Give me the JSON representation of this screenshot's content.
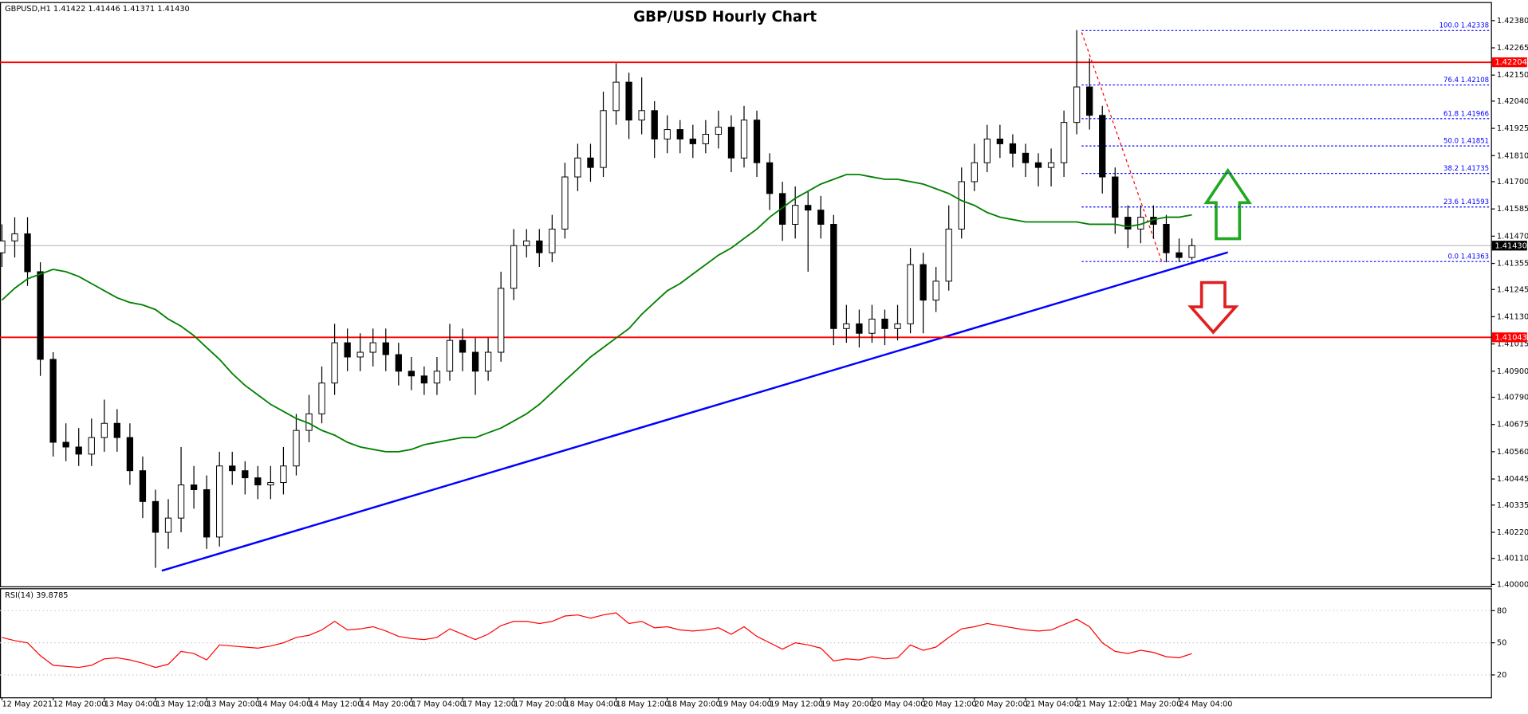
{
  "chart_data": {
    "type": "candlestick",
    "title": "GBP/USD Hourly Chart",
    "header": "GBPUSD,H1  1.41422 1.41446 1.41371 1.41430",
    "categories": [
      "12 May 2021",
      null,
      null,
      null,
      "12 May 20:00",
      null,
      null,
      null,
      "13 May 04:00",
      null,
      null,
      null,
      "13 May 12:00",
      null,
      null,
      null,
      "13 May 20:00",
      null,
      null,
      null,
      "14 May 04:00",
      null,
      null,
      null,
      "14 May 12:00",
      null,
      null,
      null,
      "14 May 20:00",
      null,
      null,
      null,
      "17 May 04:00",
      null,
      null,
      null,
      "17 May 12:00",
      null,
      null,
      null,
      "17 May 20:00",
      null,
      null,
      null,
      "18 May 04:00",
      null,
      null,
      null,
      "18 May 12:00",
      null,
      null,
      null,
      "18 May 20:00",
      null,
      null,
      null,
      "19 May 04:00",
      null,
      null,
      null,
      "19 May 12:00",
      null,
      null,
      null,
      "19 May 20:00",
      null,
      null,
      null,
      "20 May 04:00",
      null,
      null,
      null,
      "20 May 12:00",
      null,
      null,
      null,
      "20 May 20:00",
      null,
      null,
      null,
      "21 May 04:00",
      null,
      null,
      null,
      "21 May 12:00",
      null,
      null,
      null,
      "21 May 20:00",
      null,
      null,
      null,
      "24 May 04:00",
      null
    ],
    "open": [
      1.414,
      1.4145,
      1.4148,
      1.4132,
      1.4095,
      1.406,
      1.4058,
      1.4055,
      1.4062,
      1.4068,
      1.4062,
      1.4048,
      1.4035,
      1.4022,
      1.4028,
      1.4042,
      1.404,
      1.402,
      1.405,
      1.4048,
      1.4045,
      1.4042,
      1.4043,
      1.405,
      1.4065,
      1.4072,
      1.4085,
      1.4102,
      1.4096,
      1.4098,
      1.4102,
      1.4097,
      1.409,
      1.4088,
      1.4085,
      1.409,
      1.4103,
      1.4098,
      1.409,
      1.4098,
      1.4125,
      1.4143,
      1.4145,
      1.414,
      1.415,
      1.4172,
      1.418,
      1.4176,
      1.42,
      1.4212,
      1.4196,
      1.42,
      1.4188,
      1.4192,
      1.4188,
      1.4186,
      1.419,
      1.4193,
      1.418,
      1.4196,
      1.4178,
      1.4165,
      1.4152,
      1.416,
      1.4158,
      1.4152,
      1.4108,
      1.411,
      1.4106,
      1.4112,
      1.4108,
      1.411,
      1.4135,
      1.412,
      1.4128,
      1.415,
      1.417,
      1.4178,
      1.4188,
      1.4186,
      1.4182,
      1.4178,
      1.4176,
      1.4178,
      1.4195,
      1.421,
      1.4198,
      1.4172,
      1.4155,
      1.415,
      1.4155,
      1.4152,
      1.414,
      1.4138
    ],
    "high": [
      1.4152,
      1.4155,
      1.4155,
      1.4136,
      1.4098,
      1.4068,
      1.4066,
      1.407,
      1.4078,
      1.4074,
      1.4068,
      1.4054,
      1.404,
      1.4036,
      1.4058,
      1.405,
      1.4046,
      1.4056,
      1.4056,
      1.4052,
      1.405,
      1.405,
      1.4058,
      1.4072,
      1.408,
      1.4092,
      1.411,
      1.4108,
      1.4106,
      1.4108,
      1.4108,
      1.4102,
      1.4096,
      1.4092,
      1.4096,
      1.411,
      1.4108,
      1.4104,
      1.4104,
      1.4132,
      1.415,
      1.415,
      1.415,
      1.4156,
      1.4178,
      1.4186,
      1.4186,
      1.4208,
      1.422,
      1.4216,
      1.4214,
      1.4204,
      1.4198,
      1.4196,
      1.4194,
      1.4196,
      1.42,
      1.4198,
      1.4202,
      1.42,
      1.4182,
      1.417,
      1.4168,
      1.4166,
      1.4164,
      1.4156,
      1.4118,
      1.4116,
      1.4118,
      1.4116,
      1.4118,
      1.4142,
      1.414,
      1.4134,
      1.416,
      1.4176,
      1.4186,
      1.4194,
      1.4194,
      1.419,
      1.4186,
      1.4182,
      1.4184,
      1.42,
      1.4234,
      1.4222,
      1.4202,
      1.4176,
      1.416,
      1.416,
      1.416,
      1.4156,
      1.4146,
      1.4146
    ],
    "low": [
      1.4134,
      1.4138,
      1.4126,
      1.4088,
      1.4054,
      1.4052,
      1.405,
      1.405,
      1.4056,
      1.4056,
      1.4042,
      1.4028,
      1.4007,
      1.4015,
      1.4022,
      1.4032,
      1.4015,
      1.4016,
      1.4042,
      1.4038,
      1.4036,
      1.4036,
      1.4038,
      1.4046,
      1.406,
      1.4068,
      1.408,
      1.409,
      1.409,
      1.4092,
      1.409,
      1.4084,
      1.4082,
      1.408,
      1.408,
      1.4086,
      1.409,
      1.408,
      1.4086,
      1.4094,
      1.412,
      1.4138,
      1.4134,
      1.4136,
      1.4146,
      1.4166,
      1.417,
      1.4172,
      1.4194,
      1.4188,
      1.419,
      1.418,
      1.4182,
      1.4182,
      1.418,
      1.4182,
      1.4184,
      1.4174,
      1.4176,
      1.4172,
      1.4158,
      1.4145,
      1.4146,
      1.4132,
      1.4146,
      1.4101,
      1.4102,
      1.41,
      1.4102,
      1.4101,
      1.4103,
      1.4106,
      1.4106,
      1.4115,
      1.4124,
      1.4146,
      1.4166,
      1.4174,
      1.418,
      1.4176,
      1.4172,
      1.4168,
      1.4168,
      1.4172,
      1.419,
      1.4192,
      1.4165,
      1.4148,
      1.4142,
      1.4144,
      1.4146,
      1.4136,
      1.4136,
      1.4137
    ],
    "close": [
      1.4145,
      1.4148,
      1.4132,
      1.4095,
      1.406,
      1.4058,
      1.4055,
      1.4062,
      1.4068,
      1.4062,
      1.4048,
      1.4035,
      1.4022,
      1.4028,
      1.4042,
      1.404,
      1.402,
      1.405,
      1.4048,
      1.4045,
      1.4042,
      1.4043,
      1.405,
      1.4065,
      1.4072,
      1.4085,
      1.4102,
      1.4096,
      1.4098,
      1.4102,
      1.4097,
      1.409,
      1.4088,
      1.4085,
      1.409,
      1.4103,
      1.4098,
      1.409,
      1.4098,
      1.4125,
      1.4143,
      1.4145,
      1.414,
      1.415,
      1.4172,
      1.418,
      1.4176,
      1.42,
      1.4212,
      1.4196,
      1.42,
      1.4188,
      1.4192,
      1.4188,
      1.4186,
      1.419,
      1.4193,
      1.418,
      1.4196,
      1.4178,
      1.4165,
      1.4152,
      1.416,
      1.4158,
      1.4152,
      1.4108,
      1.411,
      1.4106,
      1.4112,
      1.4108,
      1.411,
      1.4135,
      1.412,
      1.4128,
      1.415,
      1.417,
      1.4178,
      1.4188,
      1.4186,
      1.4182,
      1.4178,
      1.4176,
      1.4178,
      1.4195,
      1.421,
      1.4198,
      1.4172,
      1.4155,
      1.415,
      1.4155,
      1.4152,
      1.414,
      1.4138,
      1.4143
    ],
    "ma": {
      "color": "#008000",
      "values": [
        1.412,
        1.4125,
        1.4129,
        1.4131,
        1.4133,
        1.4132,
        1.413,
        1.4127,
        1.4124,
        1.4121,
        1.4119,
        1.4118,
        1.4116,
        1.4112,
        1.4109,
        1.4105,
        1.41,
        1.4095,
        1.4089,
        1.4084,
        1.408,
        1.4076,
        1.4073,
        1.407,
        1.4068,
        1.4065,
        1.4063,
        1.406,
        1.4058,
        1.4057,
        1.4056,
        1.4056,
        1.4057,
        1.4059,
        1.406,
        1.4061,
        1.4062,
        1.4062,
        1.4064,
        1.4066,
        1.4069,
        1.4072,
        1.4076,
        1.4081,
        1.4086,
        1.4091,
        1.4096,
        1.41,
        1.4104,
        1.4108,
        1.4114,
        1.4119,
        1.4124,
        1.4127,
        1.4131,
        1.4135,
        1.4139,
        1.4142,
        1.4146,
        1.415,
        1.4155,
        1.4159,
        1.4163,
        1.4166,
        1.4169,
        1.4171,
        1.4173,
        1.4173,
        1.4172,
        1.4171,
        1.4171,
        1.417,
        1.4169,
        1.4167,
        1.4165,
        1.4162,
        1.416,
        1.4157,
        1.4155,
        1.4154,
        1.4153,
        1.4153,
        1.4153,
        1.4153,
        1.4153,
        1.4152,
        1.4152,
        1.4152,
        1.4151,
        1.4152,
        1.4154,
        1.4155,
        1.4155,
        1.4156
      ]
    },
    "ylim": [
      1.39992,
      1.42454
    ],
    "yticks": [
      {
        "value": 1.4,
        "label": "1.40000"
      },
      {
        "value": 1.4011,
        "label": "1.40110"
      },
      {
        "value": 1.4022,
        "label": "1.40220"
      },
      {
        "value": 1.40335,
        "label": "1.40335"
      },
      {
        "value": 1.40445,
        "label": "1.40445"
      },
      {
        "value": 1.4056,
        "label": "1.40560"
      },
      {
        "value": 1.40675,
        "label": "1.40675"
      },
      {
        "value": 1.4079,
        "label": "1.40790"
      },
      {
        "value": 1.409,
        "label": "1.40900"
      },
      {
        "value": 1.41015,
        "label": "1.41015"
      },
      {
        "value": 1.4113,
        "label": "1.41130"
      },
      {
        "value": 1.41245,
        "label": "1.41245"
      },
      {
        "value": 1.41355,
        "label": "1.41355"
      },
      {
        "value": 1.4147,
        "label": "1.41470"
      },
      {
        "value": 1.41585,
        "label": "1.41585"
      },
      {
        "value": 1.417,
        "label": "1.41700"
      },
      {
        "value": 1.4181,
        "label": "1.41810"
      },
      {
        "value": 1.41925,
        "label": "1.41925"
      },
      {
        "value": 1.4204,
        "label": "1.42040"
      },
      {
        "value": 1.4215,
        "label": "1.42150"
      },
      {
        "value": 1.42265,
        "label": "1.42265"
      },
      {
        "value": 1.4238,
        "label": "1.42380"
      }
    ],
    "levels": [
      {
        "value": 1.42204,
        "label": "1.42204",
        "color": "#ff0000"
      },
      {
        "value": 1.41043,
        "label": "1.41043",
        "color": "#ff0000"
      },
      {
        "value": 1.4143,
        "label": "1.41430",
        "color": "#c0c0c0"
      }
    ],
    "fib": [
      {
        "value": 1.42338,
        "label": "100.0 1.42338"
      },
      {
        "value": 1.42108,
        "label": "76.4 1.42108"
      },
      {
        "value": 1.41966,
        "label": "61.8 1.41966"
      },
      {
        "value": 1.41851,
        "label": "50.0 1.41851"
      },
      {
        "value": 1.41735,
        "label": "38.2 1.41735"
      },
      {
        "value": 1.41593,
        "label": "23.6 1.41593"
      },
      {
        "value": 1.41363,
        "label": "0.0 1.41363"
      }
    ],
    "rsi": {
      "title": "RSI(14) 39.8785",
      "color": "#ff0000",
      "ylim": [
        0,
        100
      ],
      "yticks": [
        80,
        50,
        20
      ],
      "values": [
        55,
        52,
        50,
        38,
        29,
        28,
        27,
        29,
        35,
        36,
        34,
        31,
        27,
        30,
        42,
        40,
        34,
        48,
        47,
        46,
        45,
        47,
        50,
        55,
        57,
        62,
        70,
        62,
        63,
        65,
        61,
        56,
        54,
        53,
        55,
        63,
        58,
        53,
        58,
        66,
        70,
        70,
        68,
        70,
        75,
        76,
        73,
        76,
        78,
        68,
        70,
        64,
        65,
        62,
        61,
        62,
        64,
        58,
        65,
        56,
        50,
        44,
        50,
        48,
        45,
        33,
        35,
        34,
        37,
        35,
        36,
        48,
        43,
        46,
        55,
        63,
        65,
        68,
        66,
        64,
        62,
        61,
        62,
        67,
        72,
        65,
        50,
        42,
        40,
        43,
        41,
        37,
        36,
        39.8785
      ]
    }
  }
}
